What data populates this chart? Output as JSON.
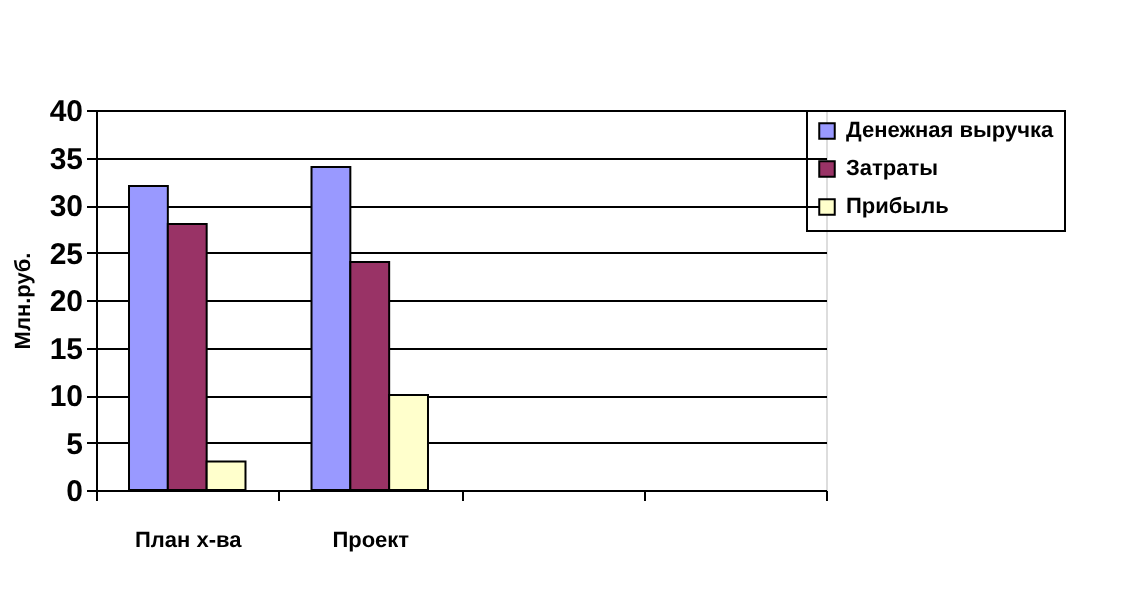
{
  "chart_data": {
    "type": "bar",
    "ylabel": "Млн.руб.",
    "categories": [
      "План х-ва",
      "Проект",
      null,
      null
    ],
    "series": [
      {
        "name": "Денежная выручка",
        "color": "#9999ff",
        "values": [
          32,
          34,
          null,
          null
        ]
      },
      {
        "name": "Затраты",
        "color": "#993366",
        "values": [
          28,
          24,
          null,
          null
        ]
      },
      {
        "name": "Прибыль",
        "color": "#ffffcc",
        "values": [
          3,
          10,
          null,
          null
        ]
      }
    ],
    "ylim": [
      0,
      40
    ],
    "yticks": [
      0,
      5,
      10,
      15,
      20,
      25,
      30,
      35,
      40
    ],
    "grid": "y",
    "legend": "right"
  }
}
